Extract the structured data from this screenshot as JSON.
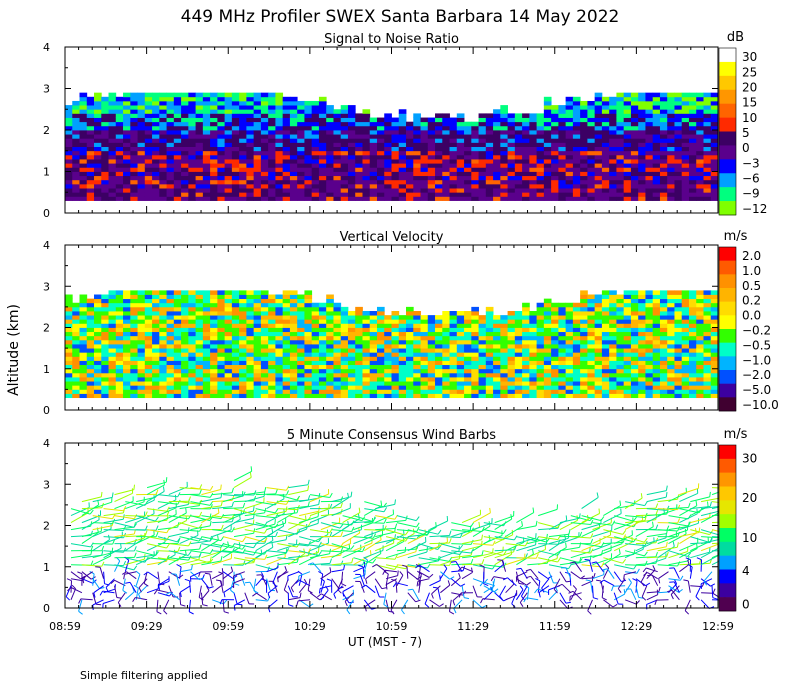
{
  "title": "449 MHz Profiler SWEX Santa Barbara 14 May 2022",
  "ylabel": "Altitude (km)",
  "xlabel": "UT  (MST - 7)",
  "footnote": "Simple filtering applied",
  "chart_data": [
    {
      "type": "heatmap",
      "title": "Signal to Noise Ratio",
      "units": "dB",
      "ylim": [
        0,
        4
      ],
      "yticks": [
        "0",
        "1",
        "2",
        "3",
        "4"
      ],
      "xticks": [
        "08:59",
        "09:29",
        "09:59",
        "10:29",
        "10:59",
        "11:29",
        "11:59",
        "12:29",
        "12:59"
      ],
      "data_altitude_km": [
        0.3,
        2.9
      ],
      "description_of_field": "SNR strongest (10-20 dB, red/orange) between 0.3 and 1.5 km, 0-5 dB (purple) up to ~2 km, -3 to -12 dB (blue/green) up to ~2.9 km",
      "colorbar": {
        "labels": [
          "30",
          "25",
          "20",
          "15",
          "10",
          "5",
          "0",
          "−3",
          "−6",
          "−9",
          "−12"
        ],
        "colors": [
          "#ffffff",
          "#ffff00",
          "#ffc800",
          "#ff9600",
          "#ff6400",
          "#ff2a00",
          "#3c0064",
          "#5a008c",
          "#0000ff",
          "#00a0ff",
          "#00ff7f",
          "#7fff00"
        ]
      }
    },
    {
      "type": "heatmap",
      "title": "Vertical Velocity",
      "units": "m/s",
      "ylim": [
        0,
        4
      ],
      "yticks": [
        "0",
        "1",
        "2",
        "3",
        "4"
      ],
      "xticks": [
        "08:59",
        "09:29",
        "09:59",
        "10:29",
        "10:59",
        "11:29",
        "11:59",
        "12:29",
        "12:59"
      ],
      "data_altitude_km": [
        0.3,
        2.9
      ],
      "description_of_field": "Mostly -0.5 to 0.5 m/s (cyan/green/yellow) from 0.3 to ~2.9 km",
      "colorbar": {
        "labels": [
          "2.0",
          "1.0",
          "0.5",
          "0.2",
          "0.0",
          "−0.2",
          "−0.5",
          "−1.0",
          "−2.0",
          "−5.0",
          "−10.0"
        ],
        "colors": [
          "#ff0000",
          "#ff5a00",
          "#ff9100",
          "#ffb400",
          "#ffdc00",
          "#ffff00",
          "#32ff00",
          "#00ffc8",
          "#00b4ff",
          "#0050ff",
          "#3c00a0",
          "#400030"
        ]
      }
    },
    {
      "type": "wind_barbs",
      "title": "5 Minute Consensus Wind Barbs",
      "units": "m/s",
      "ylim": [
        0,
        4
      ],
      "yticks": [
        "0",
        "1",
        "2",
        "3",
        "4"
      ],
      "xticks": [
        "08:59",
        "09:29",
        "09:59",
        "10:29",
        "10:59",
        "11:29",
        "11:59",
        "12:29",
        "12:59"
      ],
      "description_of_field": "Weak winds 0-4 m/s (purple/blue) below 1 km, 10-20 m/s (green/yellow) from 1 to ~3 km",
      "colorbar": {
        "labels": [
          "30",
          "20",
          "10",
          "4",
          "0"
        ],
        "colors": [
          "#ff0000",
          "#ff5a00",
          "#ff9600",
          "#ffc800",
          "#e6e600",
          "#a0ff00",
          "#00ff64",
          "#00dca0",
          "#00a0ff",
          "#0000ff",
          "#3c00a0",
          "#500050"
        ]
      }
    }
  ]
}
